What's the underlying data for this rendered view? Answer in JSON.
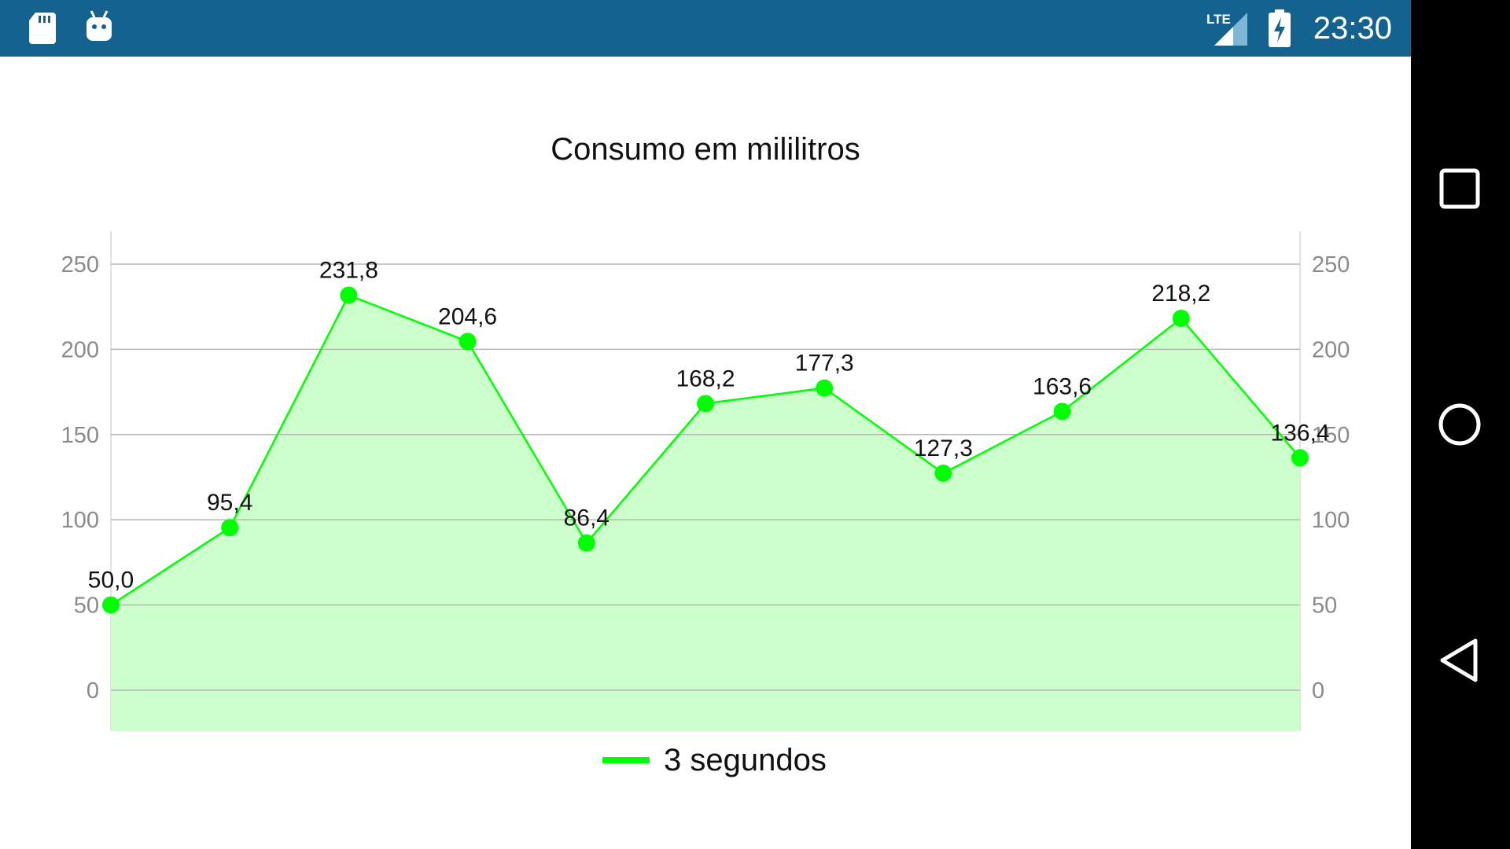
{
  "status_bar": {
    "time": "23:30",
    "network_label": "LTE",
    "color": "#13628f",
    "icons": [
      "sd-card-icon",
      "android-debug-icon",
      "lte-signal-icon",
      "battery-charging-icon"
    ]
  },
  "nav_bar": {
    "buttons": [
      "recents-button",
      "home-button",
      "back-button"
    ]
  },
  "chart_data": {
    "type": "area",
    "title": "Consumo em mililitros",
    "xlabel": "",
    "ylabel": "",
    "ylim": [
      -25,
      270
    ],
    "yticks": [
      0,
      50,
      100,
      150,
      200,
      250
    ],
    "ytick_labels": [
      "0",
      "50",
      "100",
      "150",
      "200",
      "250"
    ],
    "dual_y_axis": true,
    "grid": true,
    "legend_position": "bottom",
    "x": [
      1,
      2,
      3,
      4,
      5,
      6,
      7,
      8,
      9,
      10,
      11
    ],
    "series": [
      {
        "name": "3 segundos",
        "color": "#00ff00",
        "fill": "#ccffcc",
        "values": [
          50.0,
          95.4,
          231.8,
          204.6,
          86.4,
          168.2,
          177.3,
          127.3,
          163.6,
          218.2,
          136.4
        ],
        "labels": [
          "50,0",
          "95,4",
          "231,8",
          "204,6",
          "86,4",
          "168,2",
          "177,3",
          "127,3",
          "163,6",
          "218,2",
          "136,4"
        ]
      }
    ]
  }
}
